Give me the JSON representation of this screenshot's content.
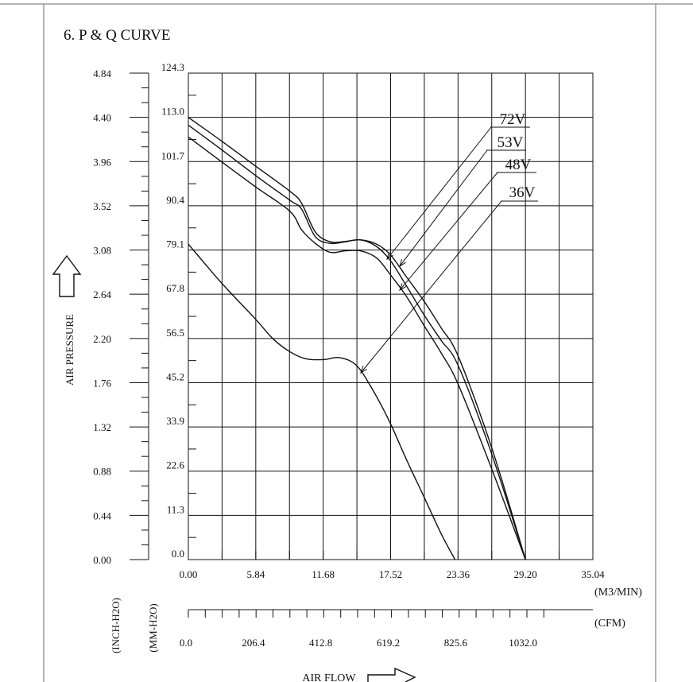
{
  "section_title": "6. P & Q CURVE",
  "colors": {
    "line": "#111111",
    "border": "#9a9a9a",
    "background": "#ffffff"
  },
  "chart_data": {
    "type": "line",
    "title": "6. P & Q CURVE",
    "xlabel": "AIR FLOW",
    "ylabel": "AIR PRESSURE",
    "x_unit_primary": "(M3/MIN)",
    "x_unit_secondary": "(CFM)",
    "y_unit_left": "(INCH-H2O)",
    "y_unit_right": "(MM-H2O)",
    "xlim": [
      0,
      35.04
    ],
    "ylim": [
      0,
      124.3
    ],
    "x_ticks_m3min": [
      "0.00",
      "5.84",
      "11.68",
      "17.52",
      "23.36",
      "29.20",
      "35.04"
    ],
    "x_ticks_cfm": [
      "0.0",
      "206.4",
      "412.8",
      "619.2",
      "825.6",
      "1032.0"
    ],
    "y_ticks_mmh2o": [
      "0.0",
      "11.3",
      "22.6",
      "33.9",
      "45.2",
      "56.5",
      "67.8",
      "79.1",
      "90.4",
      "101.7",
      "113.0",
      "124.3"
    ],
    "y_ticks_inchh2o": [
      "0.00",
      "0.44",
      "0.88",
      "1.32",
      "1.76",
      "2.20",
      "2.64",
      "3.08",
      "3.52",
      "3.96",
      "4.40",
      "4.84"
    ],
    "grid": true,
    "series": [
      {
        "name": "72V",
        "x": [
          0,
          2.9,
          5.8,
          8.8,
          9.8,
          11.0,
          12.3,
          13.6,
          14.9,
          16.3,
          17.5,
          18.9,
          20.4,
          21.9,
          23.4,
          26.3,
          29.2
        ],
        "y": [
          113.0,
          106.9,
          100.6,
          94.1,
          91.1,
          83.7,
          81.2,
          81.3,
          81.7,
          80.6,
          77.9,
          72.2,
          66.1,
          59.2,
          51.8,
          28.4,
          0
        ]
      },
      {
        "name": "53V",
        "x": [
          0,
          2.9,
          5.8,
          8.8,
          9.8,
          11.0,
          12.3,
          13.6,
          14.9,
          16.3,
          17.5,
          18.9,
          20.4,
          21.9,
          23.4,
          26.3,
          29.2
        ],
        "y": [
          111.0,
          104.7,
          98.2,
          91.8,
          89.6,
          82.5,
          80.8,
          81.2,
          81.7,
          80.0,
          76.4,
          69.9,
          62.6,
          56.0,
          49.4,
          26.8,
          0
        ]
      },
      {
        "name": "48V",
        "x": [
          0,
          2.9,
          5.8,
          8.8,
          9.8,
          11.0,
          12.3,
          13.6,
          14.9,
          16.3,
          17.5,
          18.9,
          20.4,
          21.9,
          23.4,
          26.3,
          29.2
        ],
        "y": [
          108.0,
          101.6,
          95.3,
          89.0,
          84.3,
          80.8,
          78.5,
          78.9,
          78.9,
          77.1,
          72.8,
          67.2,
          59.9,
          52.8,
          44.6,
          23.0,
          0
        ]
      },
      {
        "name": "36V",
        "x": [
          0,
          2.9,
          5.8,
          7.3,
          8.8,
          10.2,
          11.7,
          13.1,
          14.6,
          16.1,
          17.5,
          18.9,
          20.4,
          21.9,
          23.1
        ],
        "y": [
          80.6,
          70.6,
          61.5,
          56.5,
          53.1,
          51.3,
          51.1,
          51.6,
          49.5,
          42.7,
          34.8,
          25.5,
          16.1,
          6.6,
          0
        ]
      }
    ],
    "annotations": [
      "72V",
      "53V",
      "48V",
      "36V"
    ]
  }
}
